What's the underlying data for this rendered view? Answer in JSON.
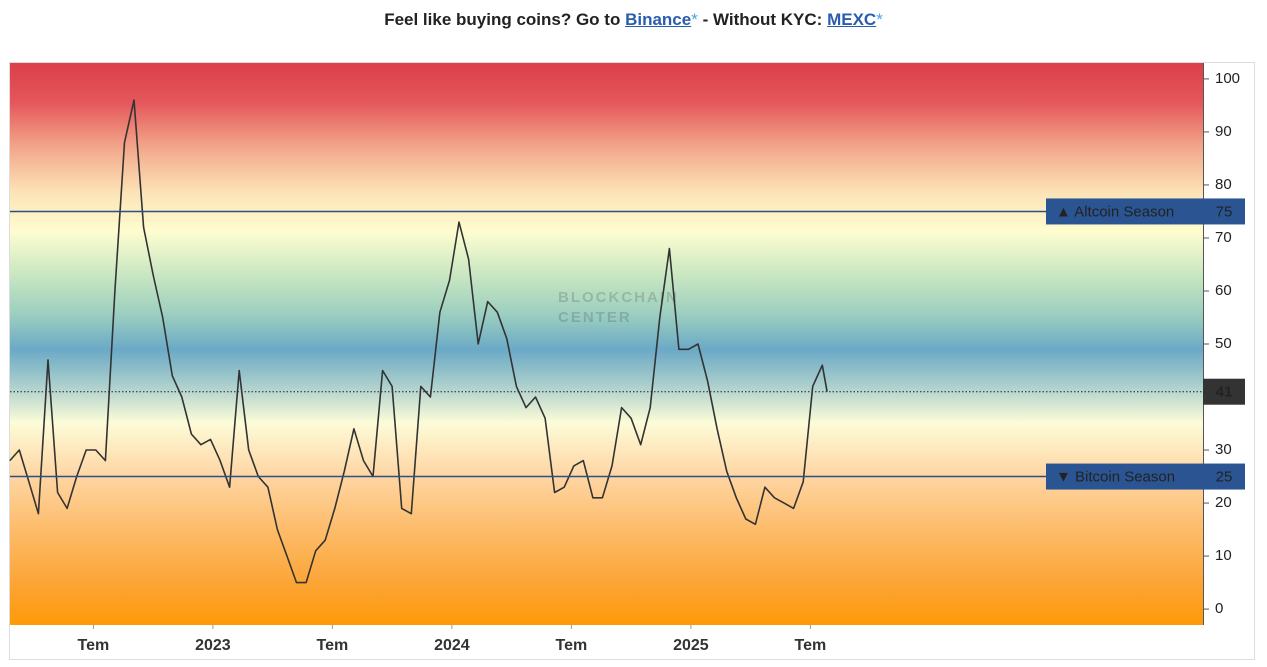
{
  "header": {
    "text_before": "Feel like buying coins? Go to",
    "link1": "Binance",
    "asterisk": "*",
    "middle": "- Without KYC:",
    "link2": "MEXC"
  },
  "chart_data": {
    "type": "line",
    "watermark": [
      "BLOCKCHAIN",
      "CENTER"
    ],
    "xlim": [
      2022.151,
      2027.143
    ],
    "xticks": [
      {
        "value": 2022.5,
        "label": "Tem"
      },
      2023,
      {
        "value": 2023.5,
        "label": "Tem"
      },
      2024,
      {
        "value": 2024.5,
        "label": "Tem"
      },
      2025,
      {
        "value": 2025.5,
        "label": "Tem"
      }
    ],
    "ylim": [
      -3,
      103
    ],
    "yticks": [
      0,
      10,
      20,
      30,
      40,
      50,
      60,
      70,
      80,
      90,
      100
    ],
    "series": [
      {
        "color": "#333333",
        "x": [
          2022.15,
          2022.19,
          2022.23,
          2022.27,
          2022.31,
          2022.35,
          2022.39,
          2022.43,
          2022.47,
          2022.51,
          2022.55,
          2022.59,
          2022.63,
          2022.67,
          2022.71,
          2022.75,
          2022.79,
          2022.83,
          2022.87,
          2022.91,
          2022.95,
          2022.99,
          2023.03,
          2023.07,
          2023.11,
          2023.15,
          2023.19,
          2023.23,
          2023.27,
          2023.31,
          2023.35,
          2023.39,
          2023.43,
          2023.47,
          2023.51,
          2023.55,
          2023.59,
          2023.63,
          2023.67,
          2023.71,
          2023.75,
          2023.79,
          2023.83,
          2023.87,
          2023.91,
          2023.95,
          2023.99,
          2024.03,
          2024.07,
          2024.11,
          2024.15,
          2024.19,
          2024.23,
          2024.27,
          2024.31,
          2024.35,
          2024.39,
          2024.43,
          2024.47,
          2024.51,
          2024.55,
          2024.59,
          2024.63,
          2024.67,
          2024.71,
          2024.75,
          2024.79,
          2024.83,
          2024.87,
          2024.91,
          2024.95,
          2024.99,
          2025.03,
          2025.07,
          2025.11,
          2025.15,
          2025.19,
          2025.23,
          2025.27,
          2025.31,
          2025.35,
          2025.39,
          2025.43,
          2025.47,
          2025.51,
          2025.55,
          2025.57
        ],
        "values": [
          28,
          30,
          24,
          18,
          47,
          22,
          19,
          25,
          30,
          30,
          28,
          60,
          88,
          96,
          72,
          63,
          55,
          44,
          40,
          33,
          31,
          32,
          28,
          23,
          45,
          30,
          25,
          23,
          15,
          10,
          5,
          5,
          11,
          13,
          19,
          26,
          34,
          28,
          25,
          45,
          42,
          19,
          18,
          42,
          40,
          56,
          62,
          73,
          66,
          50,
          58,
          56,
          51,
          42,
          38,
          40,
          36,
          22,
          23,
          27,
          28,
          21,
          21,
          27,
          38,
          36,
          31,
          38,
          55,
          68,
          49,
          49,
          50,
          43,
          34,
          26,
          21,
          17,
          16,
          23,
          21,
          20,
          19,
          24,
          42,
          46,
          41
        ]
      }
    ],
    "reference_lines": [
      {
        "label": "▲ Altcoin Season",
        "value": 75
      },
      {
        "label": "▼ Bitcoin Season",
        "value": 25
      }
    ],
    "current": {
      "value": 41
    }
  }
}
